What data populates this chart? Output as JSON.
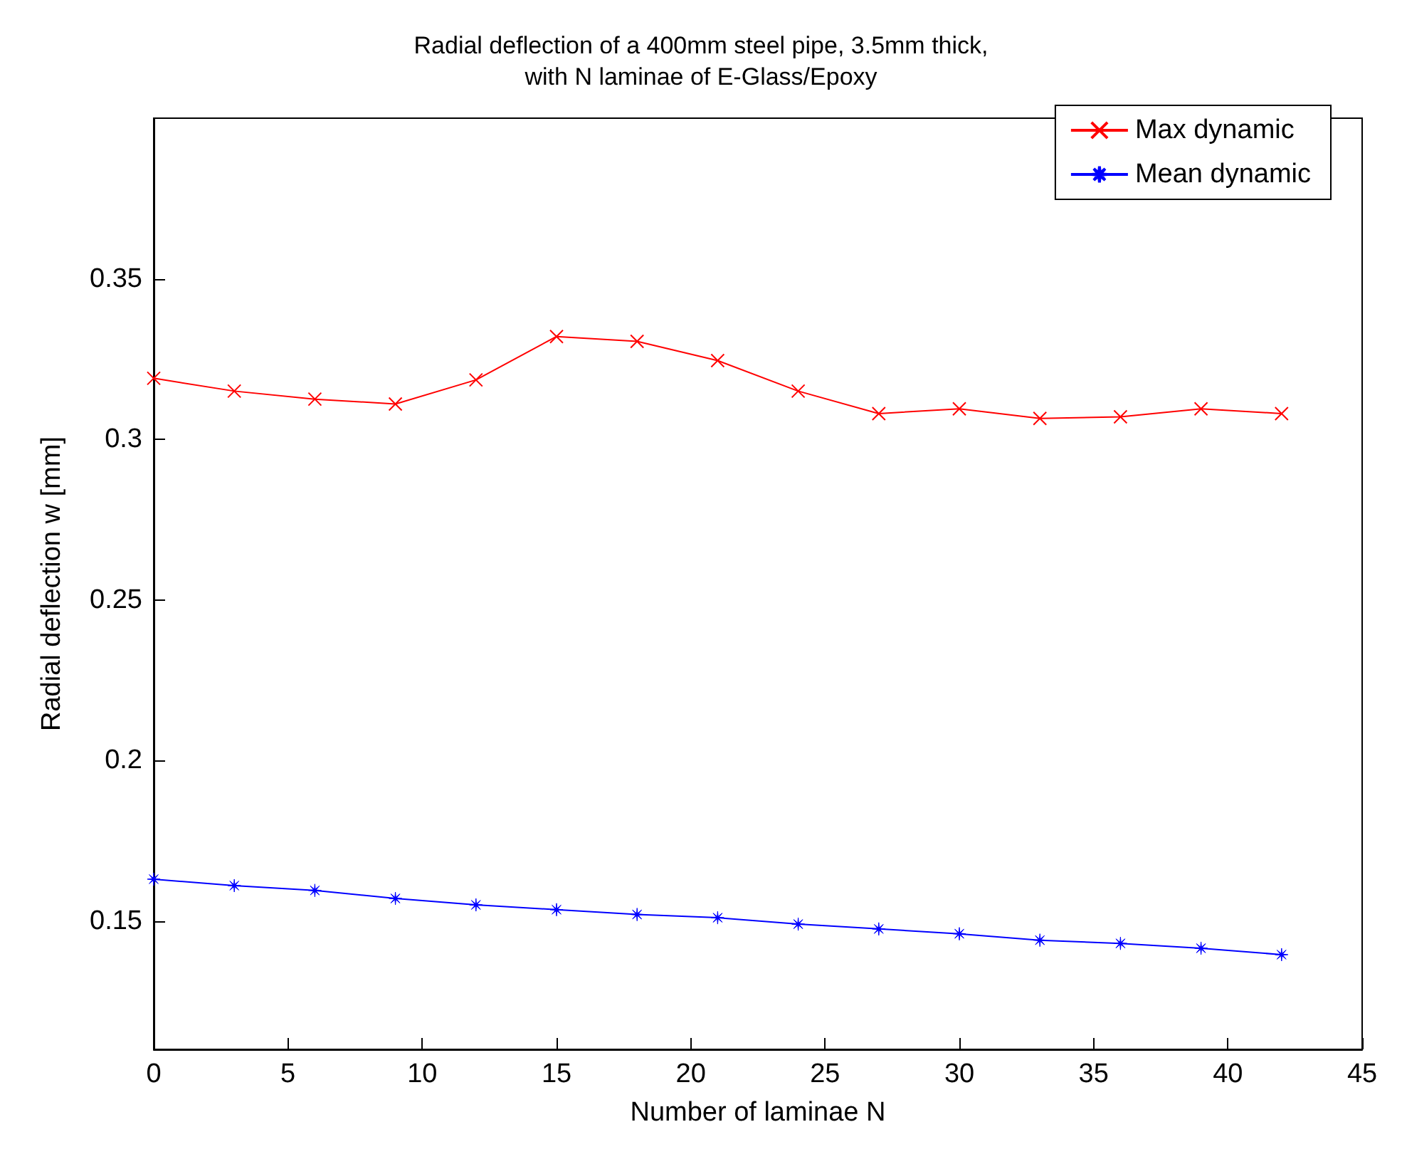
{
  "chart_data": {
    "type": "line",
    "title": "Radial deflection of a 400mm steel pipe, 3.5mm thick,\nwith N laminae of E-Glass/Epoxy",
    "xlabel": "Number of laminae N",
    "ylabel": "Radial deflection w [mm]",
    "x": [
      0,
      3,
      6,
      9,
      12,
      15,
      18,
      21,
      24,
      27,
      30,
      33,
      36,
      39,
      42
    ],
    "series": [
      {
        "name": "Max dynamic",
        "color": "#ff0000",
        "marker": "cross",
        "values": [
          0.319,
          0.315,
          0.3125,
          0.311,
          0.3185,
          0.332,
          0.3305,
          0.3245,
          0.315,
          0.308,
          0.3095,
          0.3065,
          0.307,
          0.3095,
          0.308
        ]
      },
      {
        "name": "Mean dynamic",
        "color": "#0000ff",
        "marker": "star",
        "values": [
          0.163,
          0.161,
          0.1595,
          0.157,
          0.155,
          0.1535,
          0.152,
          0.151,
          0.149,
          0.1475,
          0.146,
          0.144,
          0.143,
          0.1415,
          0.1395
        ]
      }
    ],
    "xlim": [
      0,
      45
    ],
    "xticks": [
      0,
      5,
      10,
      15,
      20,
      25,
      30,
      35,
      40,
      45
    ],
    "ylim": [
      0.11,
      0.4
    ],
    "yticks": [
      0.15,
      0.2,
      0.25,
      0.3,
      0.35
    ],
    "grid": false,
    "legend": "top right",
    "line_style": "solid"
  }
}
